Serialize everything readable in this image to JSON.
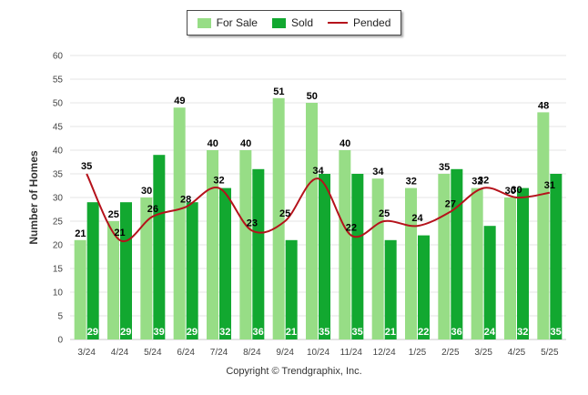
{
  "chart_data": {
    "type": "bar",
    "categories": [
      "3/24",
      "4/24",
      "5/24",
      "6/24",
      "7/24",
      "8/24",
      "9/24",
      "10/24",
      "11/24",
      "12/24",
      "1/25",
      "2/25",
      "3/25",
      "4/25",
      "5/25"
    ],
    "series": [
      {
        "name": "For Sale",
        "kind": "bar",
        "color": "#97dd86",
        "values": [
          21,
          25,
          30,
          49,
          40,
          40,
          51,
          50,
          40,
          34,
          32,
          35,
          32,
          30,
          48
        ]
      },
      {
        "name": "Sold",
        "kind": "bar",
        "color": "#12a830",
        "values": [
          29,
          29,
          39,
          29,
          32,
          36,
          21,
          35,
          35,
          21,
          22,
          36,
          24,
          32,
          35
        ]
      },
      {
        "name": "Pended",
        "kind": "line",
        "color": "#b5121b",
        "values": [
          35,
          21,
          26,
          28,
          32,
          23,
          25,
          34,
          22,
          25,
          24,
          27,
          32,
          30,
          31
        ]
      }
    ],
    "xlabel": "",
    "ylabel": "Number of Homes",
    "ylim": [
      0,
      60
    ],
    "yticks": [
      0,
      5,
      10,
      15,
      20,
      25,
      30,
      35,
      40,
      45,
      50,
      55,
      60
    ],
    "grid": true,
    "legend_position": "top-center"
  },
  "legend": {
    "for_sale": "For Sale",
    "sold": "Sold",
    "pended": "Pended"
  },
  "footer": {
    "copyright": "Copyright © Trendgraphix, Inc."
  }
}
